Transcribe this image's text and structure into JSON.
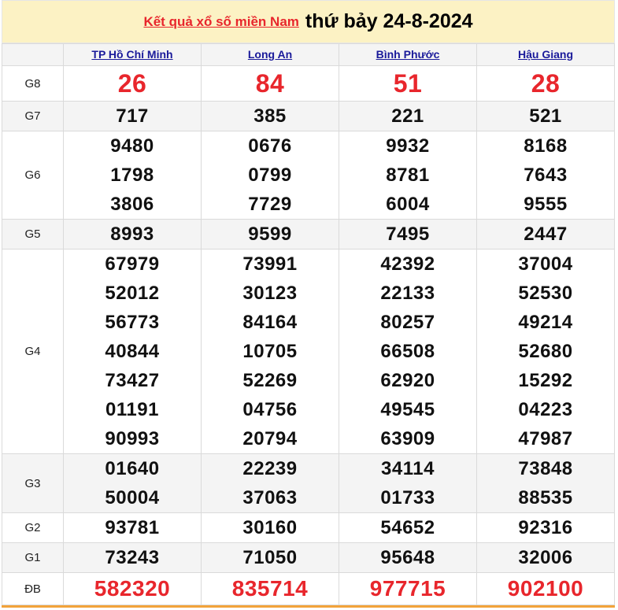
{
  "header": {
    "title_link": "Kết quả xổ số miền Nam",
    "title_date": "thứ bảy 24-8-2024"
  },
  "colors": {
    "accent_red": "#e8262c",
    "link_blue": "#1a1a9a",
    "title_bg": "#fcf2c4",
    "bottom_bar": "#f2a33a"
  },
  "provinces": [
    "TP Hồ Chí Minh",
    "Long An",
    "Bình Phước",
    "Hậu Giang"
  ],
  "prizes": [
    {
      "label": "G8",
      "style": "big",
      "values": [
        [
          "26"
        ],
        [
          "84"
        ],
        [
          "51"
        ],
        [
          "28"
        ]
      ]
    },
    {
      "label": "G7",
      "values": [
        [
          "717"
        ],
        [
          "385"
        ],
        [
          "221"
        ],
        [
          "521"
        ]
      ]
    },
    {
      "label": "G6",
      "values": [
        [
          "9480",
          "1798",
          "3806"
        ],
        [
          "0676",
          "0799",
          "7729"
        ],
        [
          "9932",
          "8781",
          "6004"
        ],
        [
          "8168",
          "7643",
          "9555"
        ]
      ]
    },
    {
      "label": "G5",
      "values": [
        [
          "8993"
        ],
        [
          "9599"
        ],
        [
          "7495"
        ],
        [
          "2447"
        ]
      ]
    },
    {
      "label": "G4",
      "values": [
        [
          "67979",
          "52012",
          "56773",
          "40844",
          "73427",
          "01191",
          "90993"
        ],
        [
          "73991",
          "30123",
          "84164",
          "10705",
          "52269",
          "04756",
          "20794"
        ],
        [
          "42392",
          "22133",
          "80257",
          "66508",
          "62920",
          "49545",
          "63909"
        ],
        [
          "37004",
          "52530",
          "49214",
          "52680",
          "15292",
          "04223",
          "47987"
        ]
      ]
    },
    {
      "label": "G3",
      "values": [
        [
          "01640",
          "50004"
        ],
        [
          "22239",
          "37063"
        ],
        [
          "34114",
          "01733"
        ],
        [
          "73848",
          "88535"
        ]
      ]
    },
    {
      "label": "G2",
      "values": [
        [
          "93781"
        ],
        [
          "30160"
        ],
        [
          "54652"
        ],
        [
          "92316"
        ]
      ]
    },
    {
      "label": "G1",
      "values": [
        [
          "73243"
        ],
        [
          "71050"
        ],
        [
          "95648"
        ],
        [
          "32006"
        ]
      ]
    },
    {
      "label": "ĐB",
      "style": "db",
      "values": [
        [
          "582320"
        ],
        [
          "835714"
        ],
        [
          "977715"
        ],
        [
          "902100"
        ]
      ]
    }
  ]
}
